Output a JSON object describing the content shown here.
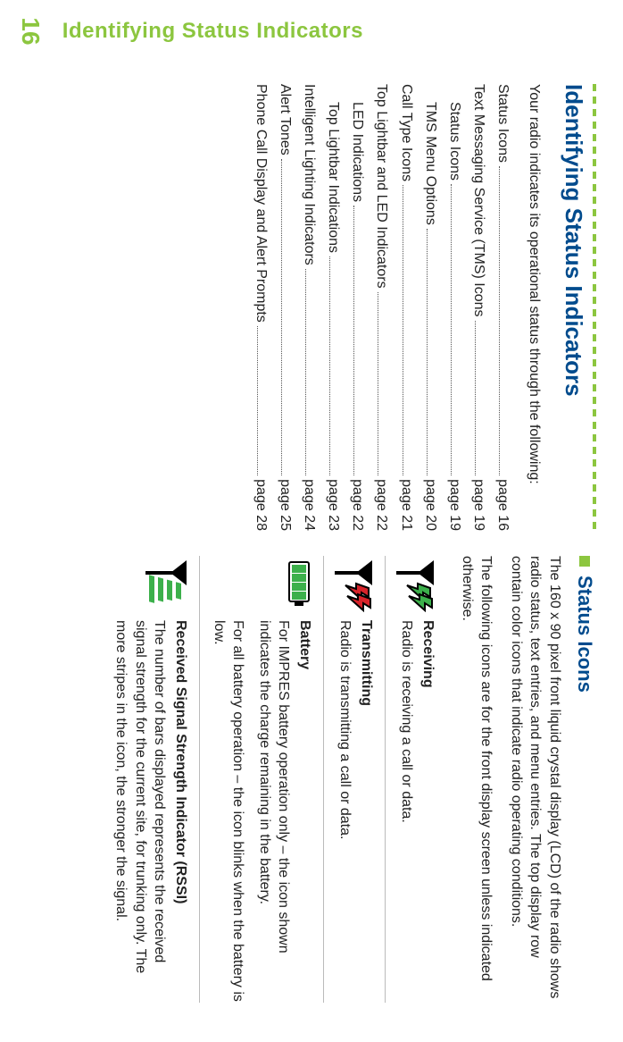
{
  "side_title": "Identifying Status Indicators",
  "page_number": "16",
  "left": {
    "heading": "Identifying Status Indicators",
    "intro": "Your radio indicates its operational status through the following:",
    "toc": [
      {
        "label": "Status Icons",
        "page": "page 16",
        "indent": false
      },
      {
        "label": "Text Messaging Service (TMS) Icons",
        "page": "page 19",
        "indent": false
      },
      {
        "label": "Status Icons",
        "page": "page 19",
        "indent": true
      },
      {
        "label": "TMS Menu Options",
        "page": "page 20",
        "indent": true
      },
      {
        "label": "Call Type Icons",
        "page": "page 21",
        "indent": false
      },
      {
        "label": "Top Lightbar and LED Indicators",
        "page": "page 22",
        "indent": false
      },
      {
        "label": "LED Indications",
        "page": "page 22",
        "indent": true
      },
      {
        "label": "Top Lightbar Indications",
        "page": "page 23",
        "indent": true
      },
      {
        "label": "Intelligent Lighting Indicators",
        "page": "page 24",
        "indent": false
      },
      {
        "label": "Alert Tones",
        "page": "page 25",
        "indent": false
      },
      {
        "label": "Phone Call Display and Alert Prompts",
        "page": "page 28",
        "indent": false
      }
    ]
  },
  "right": {
    "heading": "Status Icons",
    "intro1": "The 160 x 90 pixel front liquid crystal display (LCD) of the radio shows radio status, text entries, and menu entries. The top display row contain color icons that indicate radio operating conditions.",
    "intro2": "The following icons are for the front display screen unless indicated otherwise.",
    "items": [
      {
        "title": "Receiving",
        "body": "Radio is receiving a call or data.",
        "icon": "receiving"
      },
      {
        "title": "Transmitting",
        "body": "Radio is transmitting a call or data.",
        "icon": "transmitting"
      },
      {
        "title": "Battery",
        "body": "For IMPRES battery operation only – the icon shown indicates the charge remaining in the battery.",
        "body2": "For all battery operation – the icon blinks when the battery is low.",
        "icon": "battery"
      },
      {
        "title": "Received Signal Strength Indicator (RSSI)",
        "body": "The number of bars displayed represents the received signal strength for the current site, for trunking only. The more stripes in the icon, the stronger the signal.",
        "icon": "rssi"
      }
    ]
  },
  "colors": {
    "green": "#3cb04b",
    "red": "#d8232a",
    "blue": "#004b8d",
    "leaf": "#8cc63f"
  }
}
